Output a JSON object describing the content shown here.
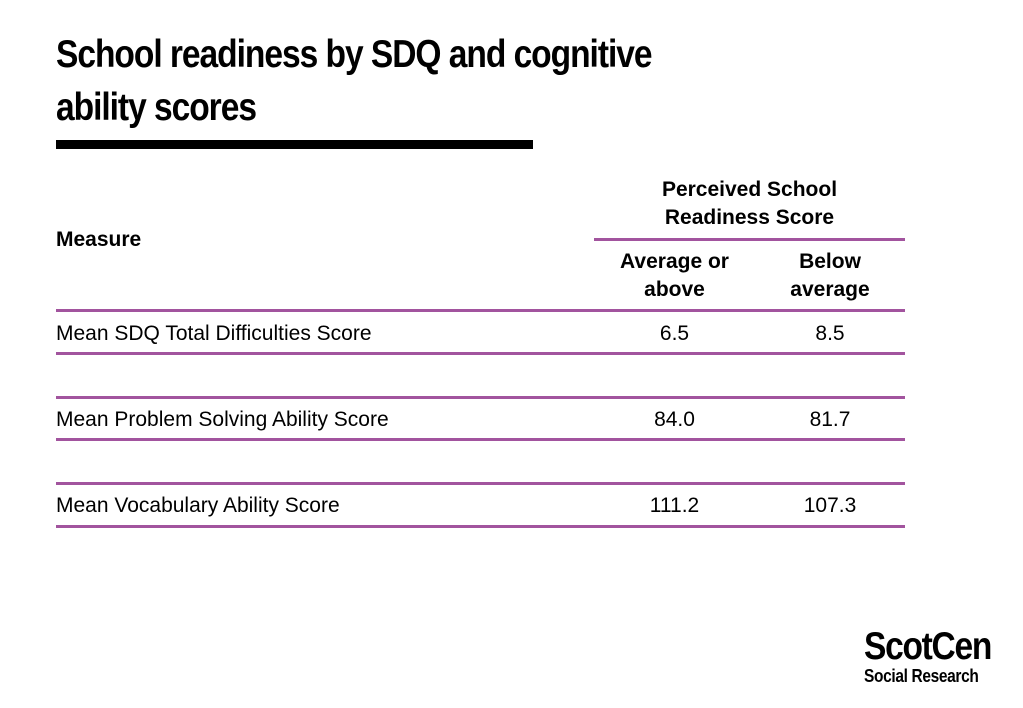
{
  "title_line1": "School readiness by SDQ and cognitive",
  "title_line2": "ability scores",
  "table": {
    "measure_header": "Measure",
    "group_header_line1": "Perceived School",
    "group_header_line2": "Readiness Score",
    "col1_line1": "Average or",
    "col1_line2": "above",
    "col2_line1": "Below",
    "col2_line2": "average",
    "rows": [
      {
        "label": "Mean SDQ Total Difficulties Score",
        "avg_or_above": "6.5",
        "below_avg": "8.5"
      },
      {
        "label": "Mean Problem Solving Ability Score",
        "avg_or_above": "84.0",
        "below_avg": "81.7"
      },
      {
        "label": "Mean Vocabulary Ability Score",
        "avg_or_above": "111.2",
        "below_avg": "107.3"
      }
    ]
  },
  "logo": {
    "name": "ScotCen",
    "tagline": "Social Research"
  },
  "colors": {
    "rule": "#a2549e",
    "text": "#000000"
  }
}
